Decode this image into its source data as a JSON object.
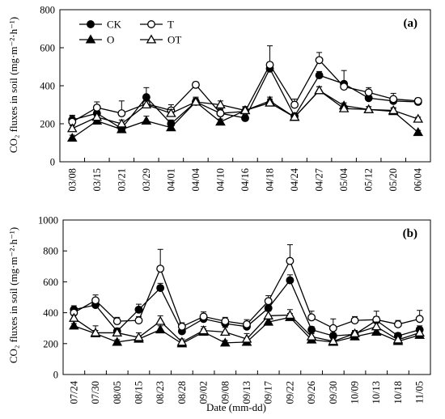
{
  "figure": {
    "ylabel": "CO₂ fluxes in soil (mg·m⁻²·h⁻¹)",
    "xlabel": "Date (mm-dd)",
    "legend": [
      "CK",
      "T",
      "O",
      "OT"
    ]
  },
  "chart_data": [
    {
      "type": "line",
      "panel_label": "(a)",
      "categories": [
        "03/08",
        "03/15",
        "03/21",
        "03/29",
        "04/01",
        "04/04",
        "04/10",
        "04/16",
        "04/18",
        "04/24",
        "04/27",
        "05/04",
        "05/12",
        "05/20",
        "06/04"
      ],
      "ylim": [
        0,
        800
      ],
      "yticks": [
        0,
        200,
        400,
        600,
        800
      ],
      "legend_position": "top-left",
      "grid": false,
      "series": [
        {
          "name": "CK",
          "marker": "circle-filled",
          "values": [
            220,
            255,
            175,
            340,
            200,
            315,
            255,
            230,
            490,
            240,
            455,
            410,
            335,
            320,
            315
          ],
          "errors": [
            25,
            20,
            15,
            50,
            20,
            25,
            20,
            15,
            25,
            15,
            20,
            70,
            20,
            20,
            10
          ]
        },
        {
          "name": "T",
          "marker": "circle-open",
          "values": [
            210,
            285,
            255,
            305,
            270,
            405,
            255,
            265,
            510,
            300,
            535,
            395,
            365,
            330,
            320
          ],
          "errors": [
            30,
            30,
            65,
            25,
            30,
            15,
            25,
            25,
            100,
            30,
            40,
            20,
            25,
            30,
            15
          ]
        },
        {
          "name": "O",
          "marker": "triangle-filled",
          "values": [
            125,
            215,
            170,
            215,
            180,
            315,
            210,
            270,
            320,
            235,
            375,
            295,
            275,
            265,
            155
          ],
          "errors": [
            15,
            20,
            20,
            25,
            20,
            15,
            15,
            15,
            20,
            15,
            20,
            15,
            15,
            15,
            10
          ]
        },
        {
          "name": "OT",
          "marker": "triangle-open",
          "values": [
            175,
            235,
            200,
            300,
            255,
            315,
            300,
            270,
            310,
            235,
            375,
            280,
            275,
            270,
            225
          ],
          "errors": [
            15,
            20,
            20,
            20,
            20,
            20,
            20,
            20,
            20,
            15,
            20,
            15,
            15,
            15,
            10
          ]
        }
      ]
    },
    {
      "type": "line",
      "panel_label": "(b)",
      "categories": [
        "07/24",
        "07/30",
        "08/05",
        "08/15",
        "08/23",
        "08/28",
        "09/02",
        "09/08",
        "09/13",
        "09/17",
        "09/22",
        "09/26",
        "09/30",
        "10/09",
        "10/13",
        "10/18",
        "11/05"
      ],
      "ylim": [
        0,
        1000
      ],
      "yticks": [
        0,
        200,
        400,
        600,
        800,
        1000
      ],
      "grid": false,
      "series": [
        {
          "name": "CK",
          "marker": "circle-filled",
          "values": [
            420,
            450,
            280,
            420,
            560,
            280,
            360,
            330,
            310,
            430,
            610,
            290,
            250,
            260,
            350,
            250,
            290
          ],
          "errors": [
            25,
            30,
            20,
            35,
            30,
            20,
            25,
            25,
            25,
            30,
            35,
            20,
            20,
            20,
            25,
            20,
            25
          ]
        },
        {
          "name": "T",
          "marker": "circle-open",
          "values": [
            400,
            480,
            345,
            350,
            685,
            310,
            375,
            345,
            325,
            475,
            735,
            370,
            300,
            350,
            355,
            325,
            360
          ],
          "errors": [
            30,
            35,
            25,
            25,
            125,
            25,
            30,
            25,
            30,
            35,
            105,
            40,
            60,
            25,
            55,
            25,
            55
          ]
        },
        {
          "name": "O",
          "marker": "triangle-filled",
          "values": [
            315,
            265,
            210,
            230,
            290,
            200,
            275,
            205,
            210,
            340,
            370,
            225,
            210,
            245,
            275,
            215,
            255
          ],
          "errors": [
            15,
            20,
            15,
            15,
            25,
            15,
            20,
            15,
            15,
            20,
            25,
            15,
            15,
            15,
            20,
            15,
            15
          ]
        },
        {
          "name": "OT",
          "marker": "triangle-open",
          "values": [
            365,
            270,
            270,
            240,
            345,
            210,
            285,
            275,
            230,
            380,
            385,
            245,
            215,
            265,
            310,
            225,
            270
          ],
          "errors": [
            20,
            45,
            30,
            30,
            35,
            20,
            25,
            30,
            35,
            30,
            35,
            20,
            25,
            20,
            30,
            20,
            25
          ]
        }
      ]
    }
  ]
}
